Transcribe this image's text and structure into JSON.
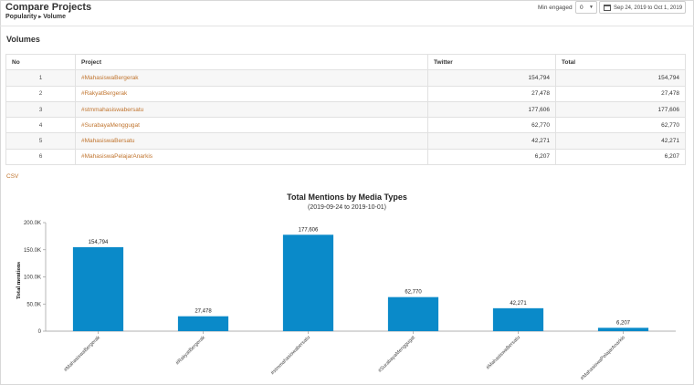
{
  "header": {
    "title": "Compare Projects",
    "breadcrumb": [
      "Popularity",
      "Volume"
    ],
    "min_engaged_label": "Min engaged",
    "min_engaged_value": "0",
    "date_range": "Sep 24, 2019 to Oct 1, 2019"
  },
  "volumes": {
    "title": "Volumes",
    "columns": [
      "No",
      "Project",
      "Twitter",
      "Total"
    ],
    "rows": [
      {
        "no": "1",
        "project": "#MahasiswaBergerak",
        "twitter": "154,794",
        "total": "154,794"
      },
      {
        "no": "2",
        "project": "#RakyatBergerak",
        "twitter": "27,478",
        "total": "27,478"
      },
      {
        "no": "3",
        "project": "#stmmahasiswabersatu",
        "twitter": "177,606",
        "total": "177,606"
      },
      {
        "no": "4",
        "project": "#SurabayaMenggugat",
        "twitter": "62,770",
        "total": "62,770"
      },
      {
        "no": "5",
        "project": "#MahasiswaBersatu",
        "twitter": "42,271",
        "total": "42,271"
      },
      {
        "no": "6",
        "project": "#MahasiswaPelajarAnarkis",
        "twitter": "6,207",
        "total": "6,207"
      }
    ]
  },
  "csv_label": "CSV",
  "chart_data": {
    "type": "bar",
    "title": "Total Mentions by Media Types",
    "subtitle": "(2019-09-24 to 2019-10-01)",
    "ylabel": "Total mentions",
    "xlabel": "",
    "ylim": [
      0,
      200000
    ],
    "yticks": [
      {
        "value": 0,
        "label": "0"
      },
      {
        "value": 50000,
        "label": "50.0K"
      },
      {
        "value": 100000,
        "label": "100.0K"
      },
      {
        "value": 150000,
        "label": "150.0K"
      },
      {
        "value": 200000,
        "label": "200.0K"
      }
    ],
    "categories": [
      "#MahasiswaBergerak",
      "#RakyatBergerak",
      "#stmmahasiswabersatu",
      "#SurabayaMenggugat",
      "#MahasiswaBersatu",
      "#MahasiswaPelajarAnarkis"
    ],
    "values": [
      154794,
      27478,
      177606,
      62770,
      42271,
      6207
    ],
    "value_labels": [
      "154,794",
      "27,478",
      "177,606",
      "62,770",
      "42,271",
      "6,207"
    ],
    "bar_color": "#0a8ac9",
    "grid": false,
    "legend": "none"
  }
}
